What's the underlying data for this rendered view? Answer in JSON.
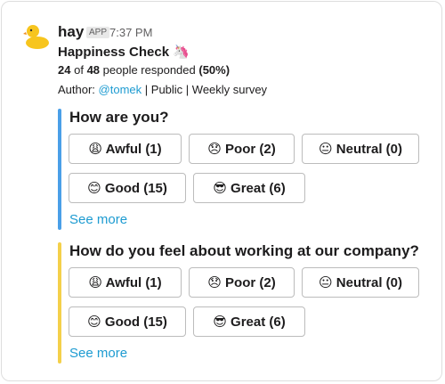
{
  "message": {
    "app_name": "hay",
    "badge": "APP",
    "time": "7:37 PM",
    "title": "Happiness Check 🦄",
    "stats": {
      "responded": "24",
      "of": "of",
      "total": "48",
      "people": "people responded",
      "percent": "(50%)"
    },
    "author": {
      "label": "Author:",
      "user": "@tomek",
      "rest": "| Public | Weekly survey"
    },
    "questions": [
      {
        "title": "How are you?",
        "color": "#4a9fe8",
        "options": [
          "😩 Awful (1)",
          "😞 Poor (2)",
          "😐 Neutral (0)",
          "😊 Good (15)",
          "😎 Great (6)"
        ],
        "see_more": "See more"
      },
      {
        "title": "How do you feel about working at our company?",
        "color": "#f4d04a",
        "options": [
          "😩 Awful (1)",
          "😞 Poor (2)",
          "😐 Neutral (0)",
          "😊 Good (15)",
          "😎 Great (6)"
        ],
        "see_more": "See more"
      }
    ]
  }
}
